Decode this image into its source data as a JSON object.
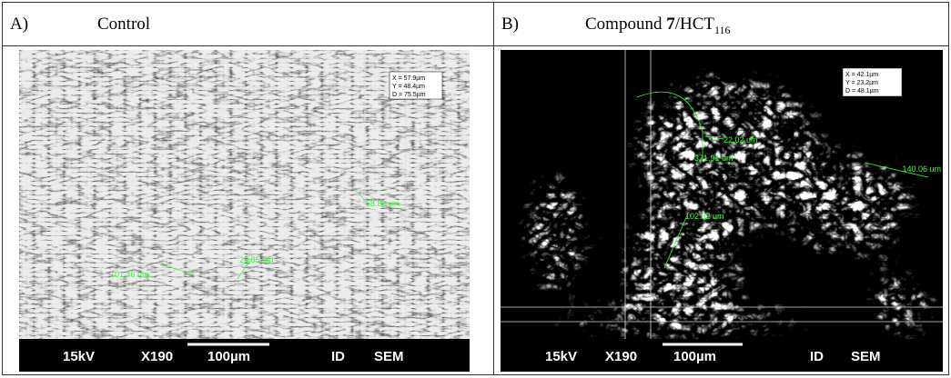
{
  "panels": [
    {
      "label": "A)",
      "title": [
        "Control"
      ],
      "image": {
        "readout": [
          "X = 57.9µm",
          "Y = 48.4µm",
          "D = 75.5µm"
        ],
        "measurements": [
          "101.46 um",
          "23.85 um",
          "58.80 um"
        ],
        "info_bar": [
          "15kV",
          "X190",
          "100µm",
          "ID",
          "SEM"
        ]
      }
    },
    {
      "label": "B)",
      "title": [
        "Compound ",
        "7",
        "/HCT",
        "116"
      ],
      "image": {
        "readout": [
          "X = 42.1µm",
          "Y = 23.2µm",
          "D = 48.1µm"
        ],
        "measurements": [
          "22.02 um",
          "371.91 um",
          "140.06 um",
          "102.32 um"
        ],
        "info_bar": [
          "15kV",
          "X190",
          "100µm",
          "ID",
          "SEM"
        ]
      }
    }
  ]
}
